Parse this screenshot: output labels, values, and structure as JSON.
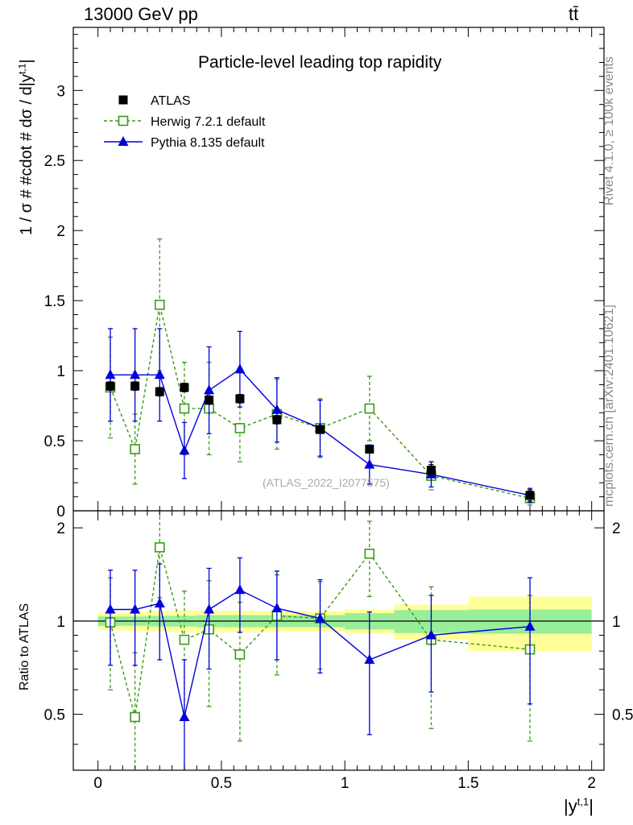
{
  "header": {
    "energy_label": "13000 GeV pp",
    "process_label": "tt̄"
  },
  "side_text": {
    "rivet": "Rivet 4.1.0, ≥ 100k events",
    "mcplots": "mcplots.cern.ch [arXiv:2401.10621]"
  },
  "colors": {
    "data": "#000000",
    "herwig": "#3a9a1a",
    "pythia": "#0000dd",
    "band_outer": "#ffff99",
    "band_inner": "#99ee99"
  },
  "chart_data": [
    {
      "panel": "main",
      "type": "scatter",
      "title": "Particle-level leading top rapidity",
      "ylabel": "1 / σ # #cdot # dσ / d|y^{t,1}|",
      "xlabel": "",
      "xlim": [
        -0.1,
        2.05
      ],
      "ylim": [
        0,
        3.45
      ],
      "yticks": [
        0,
        0.5,
        1,
        1.5,
        2,
        2.5,
        3
      ],
      "ytick_labels": [
        "0",
        "0.5",
        "1",
        "1.5",
        "2",
        "2.5",
        "3"
      ],
      "watermark": "(ATLAS_2022_I2077575)",
      "legend": [
        "ATLAS",
        "Herwig 7.2.1 default",
        "Pythia 8.135 default"
      ],
      "legend_position": "top-left",
      "series": [
        {
          "name": "ATLAS",
          "marker": "filled-square",
          "x": [
            0.05,
            0.15,
            0.25,
            0.35,
            0.45,
            0.575,
            0.725,
            0.9,
            1.1,
            1.35,
            1.75
          ],
          "y": [
            0.89,
            0.89,
            0.85,
            0.88,
            0.79,
            0.8,
            0.65,
            0.58,
            0.44,
            0.29,
            0.11
          ],
          "err": [
            0.03,
            0.03,
            0.03,
            0.03,
            0.03,
            0.03,
            0.03,
            0.02,
            0.02,
            0.04,
            0.04
          ]
        },
        {
          "name": "Herwig 7.2.1 default",
          "marker": "open-square",
          "line": "dashed",
          "x": [
            0.05,
            0.15,
            0.25,
            0.35,
            0.45,
            0.575,
            0.725,
            0.9,
            1.1,
            1.35,
            1.75
          ],
          "y": [
            0.88,
            0.44,
            1.47,
            0.73,
            0.73,
            0.59,
            0.69,
            0.59,
            0.73,
            0.25,
            0.09
          ],
          "err": [
            0.36,
            0.25,
            0.47,
            0.33,
            0.33,
            0.24,
            0.25,
            0.21,
            0.23,
            0.1,
            0.05
          ]
        },
        {
          "name": "Pythia 8.135 default",
          "marker": "filled-triangle",
          "line": "solid",
          "x": [
            0.05,
            0.15,
            0.25,
            0.35,
            0.45,
            0.575,
            0.725,
            0.9,
            1.1,
            1.35,
            1.75
          ],
          "y": [
            0.97,
            0.97,
            0.97,
            0.43,
            0.86,
            1.01,
            0.72,
            0.59,
            0.33,
            0.26,
            0.11
          ],
          "err": [
            0.33,
            0.33,
            0.33,
            0.2,
            0.31,
            0.27,
            0.23,
            0.2,
            0.14,
            0.09,
            0.05
          ]
        }
      ]
    },
    {
      "panel": "ratio",
      "type": "scatter",
      "ylabel": "Ratio to ATLAS",
      "xlabel": "|y^{t,1}|",
      "xlim": [
        -0.1,
        2.05
      ],
      "ylim": [
        0.33,
        2.27
      ],
      "yticks": [
        0.5,
        1,
        2
      ],
      "ytick_labels": [
        "0.5",
        "1",
        "2"
      ],
      "xticks": [
        0,
        0.5,
        1,
        1.5,
        2
      ],
      "xtick_labels": [
        "0",
        "0.5",
        "1",
        "1.5",
        "2"
      ],
      "bins": [
        [
          0.0,
          0.1
        ],
        [
          0.1,
          0.2
        ],
        [
          0.2,
          0.3
        ],
        [
          0.3,
          0.4
        ],
        [
          0.4,
          0.5
        ],
        [
          0.5,
          0.65
        ],
        [
          0.65,
          0.8
        ],
        [
          0.8,
          1.0
        ],
        [
          1.0,
          1.2
        ],
        [
          1.2,
          1.5
        ],
        [
          1.5,
          2.0
        ]
      ],
      "band_inner": [
        0.035,
        0.035,
        0.04,
        0.04,
        0.045,
        0.045,
        0.045,
        0.045,
        0.06,
        0.085,
        0.09
      ],
      "band_outer": [
        0.065,
        0.07,
        0.075,
        0.08,
        0.08,
        0.08,
        0.075,
        0.075,
        0.09,
        0.13,
        0.2
      ],
      "series": [
        {
          "name": "Herwig 7.2.1 default",
          "marker": "open-square",
          "line": "dashed",
          "x": [
            0.05,
            0.15,
            0.25,
            0.35,
            0.45,
            0.575,
            0.725,
            0.9,
            1.1,
            1.35,
            1.75
          ],
          "y": [
            0.99,
            0.49,
            1.73,
            0.87,
            0.94,
            0.78,
            1.04,
            1.02,
            1.65,
            0.87,
            0.81
          ],
          "err": [
            0.39,
            0.3,
            0.54,
            0.38,
            0.41,
            0.37,
            0.37,
            0.32,
            0.45,
            0.42,
            0.4
          ]
        },
        {
          "name": "Pythia 8.135 default",
          "marker": "filled-triangle",
          "line": "solid",
          "x": [
            0.05,
            0.15,
            0.25,
            0.35,
            0.45,
            0.575,
            0.725,
            0.9,
            1.1,
            1.35,
            1.75
          ],
          "y": [
            1.09,
            1.09,
            1.14,
            0.49,
            1.09,
            1.26,
            1.1,
            1.02,
            0.75,
            0.9,
            0.96
          ],
          "err": [
            0.37,
            0.37,
            0.39,
            0.26,
            0.39,
            0.34,
            0.35,
            0.34,
            0.32,
            0.31,
            0.42
          ]
        }
      ]
    }
  ]
}
